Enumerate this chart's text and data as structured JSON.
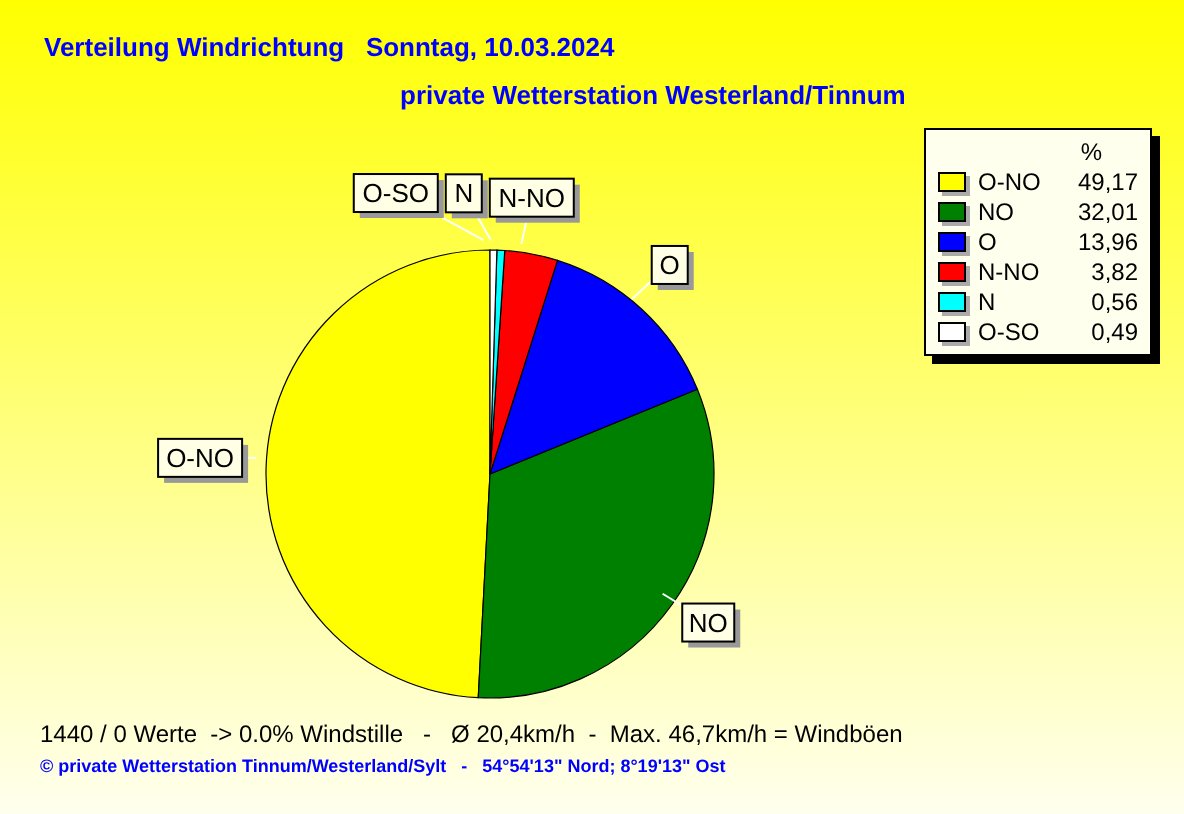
{
  "chart_data": {
    "type": "pie",
    "title": "Verteilung Windrichtung   Sonntag, 10.03.2024",
    "subtitle": "private Wetterstation Westerland/Tinnum",
    "legend_title": "%",
    "categories": [
      "O-NO",
      "NO",
      "O",
      "N-NO",
      "N",
      "O-SO"
    ],
    "values": [
      49.17,
      32.01,
      13.96,
      3.82,
      0.56,
      0.49
    ],
    "value_labels": [
      "49,17",
      "32,01",
      "13,96",
      "3,82",
      "0,56",
      "0,49"
    ],
    "colors": [
      "#ffff00",
      "#008000",
      "#0000ff",
      "#ff0000",
      "#00ffff",
      "#ffffff"
    ],
    "legend": "top right",
    "annotations": [
      "1440 / 0 Werte  -> 0.0% Windstille   -   Ø 20,4km/h  -  Max. 46,7km/h = Windböen",
      "© private Wetterstation Tinnum/Westerland/Sylt   -   54°54'13\" Nord; 8°19'13\" Ost"
    ]
  }
}
